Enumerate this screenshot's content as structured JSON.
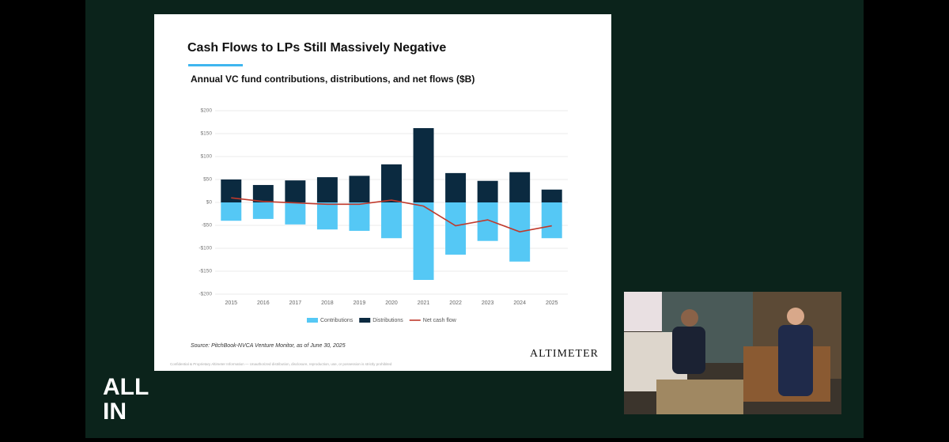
{
  "slide": {
    "heading": "Cash Flows to LPs Still Massively Negative",
    "source": "Source: PitchBook-NVCA Venture Monitor, as of June 30, 2025",
    "brand": "ALTIMETER",
    "footer": "Confidential & Proprietary Altimeter Information — Unauthorized distribution, disclosure, reproduction, use, or possession is strictly prohibited"
  },
  "logo": [
    "ALL",
    "IN"
  ],
  "chart_data": {
    "type": "bar",
    "title": "Annual VC fund contributions, distributions, and net flows ($B)",
    "categories": [
      "2015",
      "2016",
      "2017",
      "2018",
      "2019",
      "2020",
      "2021",
      "2022",
      "2023",
      "2024",
      "2025"
    ],
    "series": [
      {
        "name": "Contributions",
        "color": "#55c8f5",
        "values": [
          -40,
          -36,
          -48,
          -59,
          -62,
          -78,
          -169,
          -114,
          -84,
          -129,
          -78
        ]
      },
      {
        "name": "Distributions",
        "color": "#0b2a40",
        "values": [
          50,
          38,
          48,
          55,
          58,
          83,
          162,
          64,
          47,
          66,
          28
        ]
      },
      {
        "name": "Net cash flow",
        "color": "#c0392b",
        "type": "line",
        "values": [
          10,
          2,
          -1,
          -4,
          -4,
          5,
          -8,
          -51,
          -38,
          -64,
          -51
        ]
      }
    ],
    "ylim": [
      -200,
      200
    ],
    "yticks": [
      {
        "value": -200,
        "label": "-$200"
      },
      {
        "value": -150,
        "label": "-$150"
      },
      {
        "value": -100,
        "label": "-$100"
      },
      {
        "value": -50,
        "label": "-$50"
      },
      {
        "value": 0,
        "label": "$0"
      },
      {
        "value": 50,
        "label": "$50"
      },
      {
        "value": 100,
        "label": "$100"
      },
      {
        "value": 150,
        "label": "$150"
      },
      {
        "value": 200,
        "label": "$200"
      }
    ],
    "grid": true,
    "legend": "bottom"
  }
}
